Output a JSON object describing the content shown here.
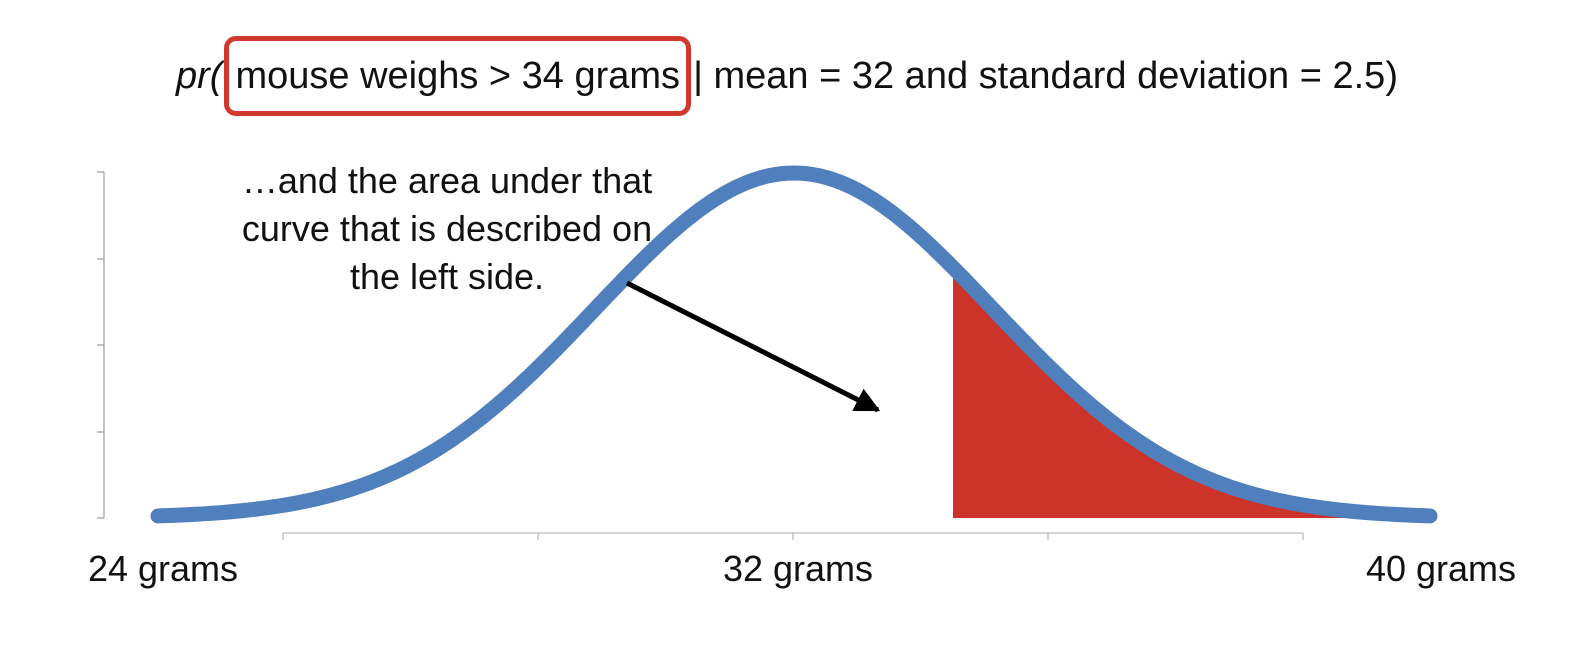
{
  "formula": {
    "prefix": "pr(",
    "highlighted": "mouse weighs > 34 grams",
    "rest": "| mean = 32 and standard deviation = 2.5)"
  },
  "annotation": {
    "lines": [
      "…and the area under that",
      "curve that is described on",
      "the left side."
    ]
  },
  "colors": {
    "curve": "#4f7fbd",
    "shaded": "#cc3329",
    "highlight_box": "#d0392b",
    "arrow": "#000000"
  },
  "chart_data": {
    "type": "area",
    "distribution": "normal",
    "mean": 32,
    "sd": 2.5,
    "shaded_from": 34,
    "xlim": [
      24,
      40
    ],
    "tick_labels": [
      {
        "x": 24,
        "label": "24 grams"
      },
      {
        "x": 32,
        "label": "32 grams"
      },
      {
        "x": 40,
        "label": "40 grams"
      }
    ],
    "grid": false
  }
}
